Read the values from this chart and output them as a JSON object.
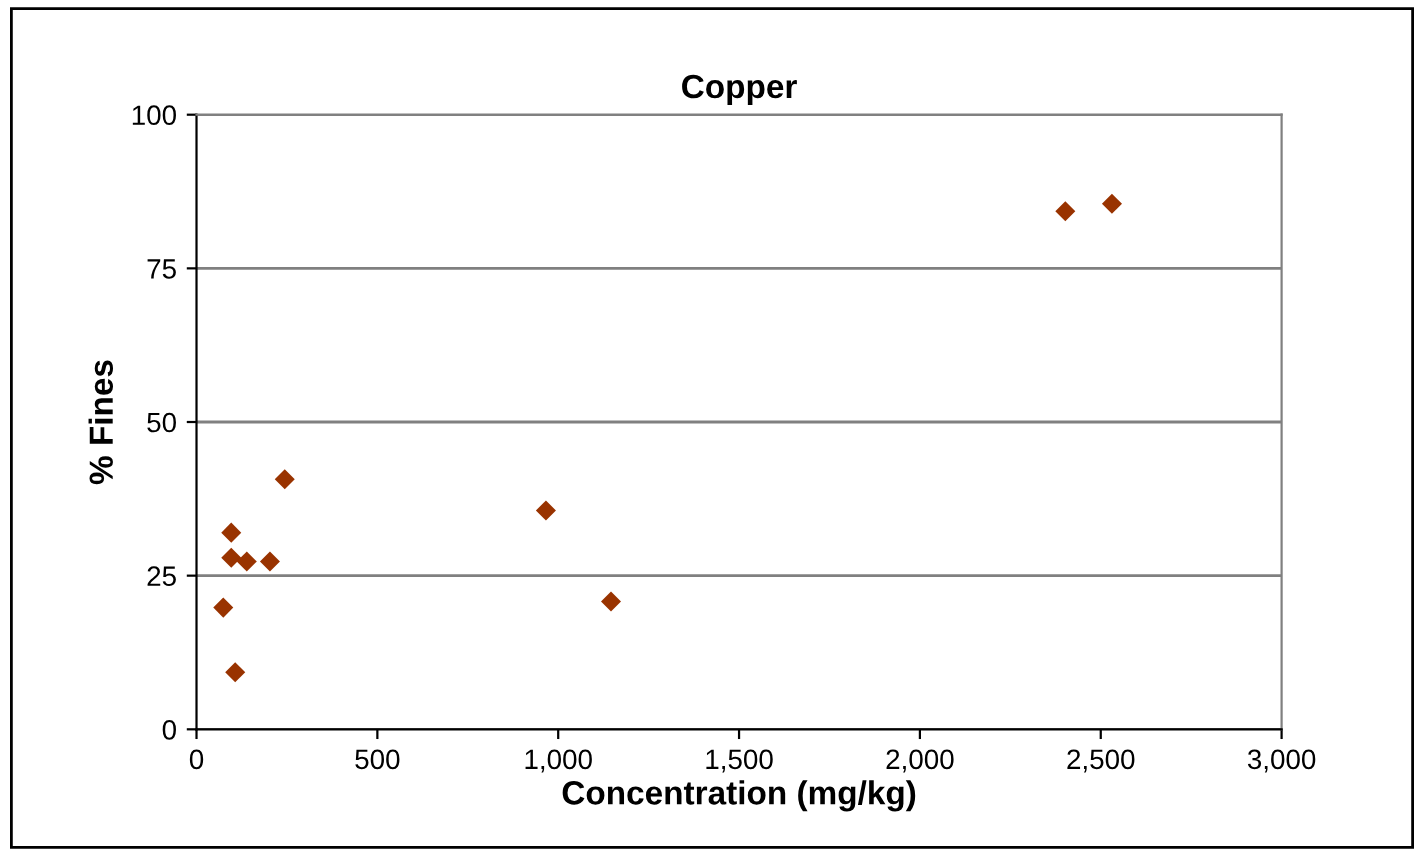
{
  "chart_data": {
    "type": "scatter",
    "title": "Copper",
    "xlabel": "Concentration (mg/kg)",
    "ylabel": "% Fines",
    "x": [
      74,
      96,
      96,
      107,
      139,
      203,
      244,
      966,
      1146,
      2402,
      2531
    ],
    "values": [
      19.8,
      32,
      27.9,
      9.3,
      27.3,
      27.3,
      40.7,
      35.6,
      20.8,
      84.3,
      85.5
    ],
    "color": "#993300",
    "marker": "diamond",
    "xlim": [
      0,
      3000
    ],
    "xticks": [
      0,
      500,
      {
        "value": 1000,
        "label": "1,000"
      },
      {
        "value": 1500,
        "label": "1,500"
      },
      {
        "value": 2000,
        "label": "2,000"
      },
      {
        "value": 2500,
        "label": "2,500"
      },
      {
        "value": 3000,
        "label": "3,000"
      }
    ],
    "ylim": [
      0,
      100
    ],
    "yticks": [
      0,
      25,
      50,
      75,
      100
    ],
    "grid": "y",
    "legend": false
  }
}
